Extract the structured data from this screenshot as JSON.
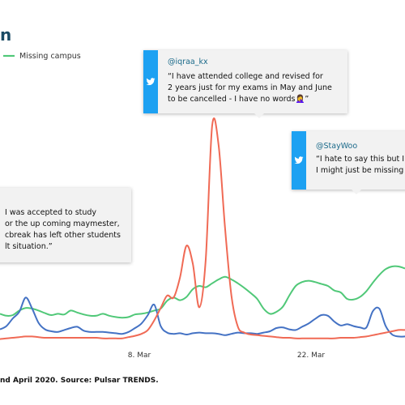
{
  "chart_data": {
    "type": "line",
    "title": "n",
    "source": "nd April 2020. Source: Pulsar TRENDS.",
    "x_ticks": [
      "8. Mar",
      "22. Mar"
    ],
    "legend": [
      {
        "label": "Missing campus",
        "color": "#50c878"
      }
    ],
    "legend_position": "top-left",
    "grid": false,
    "series": [
      {
        "name": "Missing campus",
        "color": "#50c878",
        "values": [
          47,
          44,
          45,
          52,
          56,
          55,
          52,
          48,
          45,
          47,
          46,
          52,
          49,
          46,
          44,
          44,
          47,
          44,
          42,
          41,
          42,
          46,
          47,
          49,
          52,
          55,
          67,
          72,
          68,
          73,
          85,
          90,
          88,
          94,
          100,
          104,
          100,
          94,
          87,
          79,
          70,
          55,
          47,
          50,
          58,
          75,
          90,
          96,
          98,
          96,
          93,
          90,
          83,
          80,
          70,
          69,
          73,
          82,
          95,
          107,
          116,
          120,
          120,
          117
        ]
      },
      {
        "color": "#4472c4",
        "values": [
          23,
          28,
          40,
          50,
          72,
          55,
          33,
          23,
          20,
          19,
          22,
          25,
          27,
          21,
          19,
          19,
          19,
          18,
          17,
          16,
          19,
          25,
          32,
          45,
          61,
          28,
          18,
          16,
          17,
          15,
          17,
          18,
          17,
          17,
          16,
          14,
          16,
          18,
          17,
          17,
          16,
          18,
          20,
          25,
          26,
          23,
          22,
          27,
          32,
          39,
          45,
          44,
          35,
          29,
          31,
          28,
          26,
          26,
          51,
          55,
          28,
          15,
          12,
          12
        ]
      },
      {
        "color": "#f06a55",
        "values": [
          8,
          9,
          10,
          11,
          12,
          12,
          11,
          10,
          10,
          10,
          10,
          10,
          10,
          10,
          10,
          10,
          9,
          9,
          9,
          9,
          11,
          13,
          16,
          22,
          37,
          56,
          75,
          72,
          103,
          152,
          124,
          57,
          131,
          337,
          308,
          180,
          75,
          27,
          18,
          15,
          14,
          13,
          12,
          11,
          10,
          10,
          9,
          9,
          9,
          9,
          9,
          9,
          9,
          10,
          10,
          10,
          11,
          12,
          14,
          16,
          18,
          20,
          22,
          22
        ]
      }
    ],
    "annotations": [
      {
        "handle": "",
        "text": [
          "I was accepted to study",
          "or the up coming maymester,",
          "cbreak has left other students",
          "lt situation.”"
        ]
      },
      {
        "handle": "@iqraa_kx",
        "text": [
          "“I have attended college and revised for",
          "2 years just for my exams in May and June",
          "to be cancelled - I have no words🤦‍♀️”"
        ]
      },
      {
        "handle": "@StayWoo",
        "text": [
          "“I hate to say this but I",
          "I might just be missing"
        ]
      }
    ]
  },
  "colors": {
    "accent": "#1da1f2",
    "title": "#1a4a64",
    "card": "#f2f2f2"
  },
  "icons": {
    "tweet": "twitter-bird-icon"
  }
}
